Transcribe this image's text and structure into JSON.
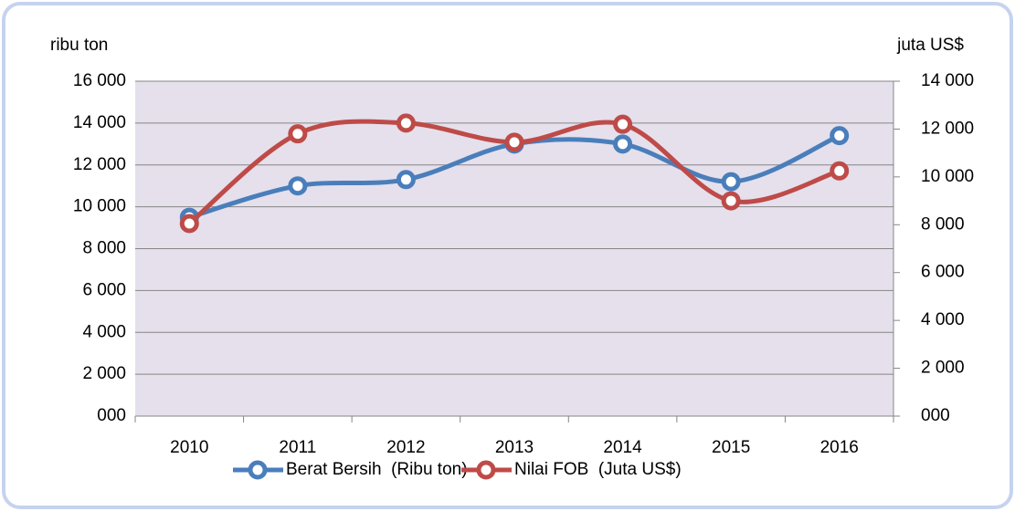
{
  "chart_data": {
    "type": "line",
    "y_label": "ribu ton",
    "y2_label": "juta US$",
    "categories": [
      "2010",
      "2011",
      "2012",
      "2013",
      "2014",
      "2015",
      "2016"
    ],
    "series": [
      {
        "name": "Berat Bersih  (Ribu ton)",
        "color": "#4a7ebb",
        "values": [
          9500,
          11000,
          11300,
          13000,
          13000,
          11200,
          13400
        ]
      },
      {
        "name": "Nilai FOB  (Juta US$)",
        "color": "#be4b48",
        "axis": "y2",
        "values": [
          8050,
          11800,
          12250,
          11450,
          12200,
          9000,
          10250
        ]
      }
    ],
    "ylim": [
      0,
      16000
    ],
    "yticks": [
      {
        "value": 0,
        "label": "000"
      },
      {
        "value": 2000,
        "label": "2 000"
      },
      {
        "value": 4000,
        "label": "4 000"
      },
      {
        "value": 6000,
        "label": "6 000"
      },
      {
        "value": 8000,
        "label": "8 000"
      },
      {
        "value": 10000,
        "label": "10 000"
      },
      {
        "value": 12000,
        "label": "12 000"
      },
      {
        "value": 14000,
        "label": "14 000"
      },
      {
        "value": 16000,
        "label": "16 000"
      }
    ],
    "y2lim": [
      0,
      14000
    ],
    "y2ticks": [
      {
        "value": 0,
        "label": "000"
      },
      {
        "value": 2000,
        "label": "2 000"
      },
      {
        "value": 4000,
        "label": "4 000"
      },
      {
        "value": 6000,
        "label": "6 000"
      },
      {
        "value": 8000,
        "label": "8 000"
      },
      {
        "value": 10000,
        "label": "10 000"
      },
      {
        "value": 12000,
        "label": "12 000"
      },
      {
        "value": 14000,
        "label": "14 000"
      }
    ],
    "grid": true,
    "smooth": true,
    "legend": "bottom"
  }
}
